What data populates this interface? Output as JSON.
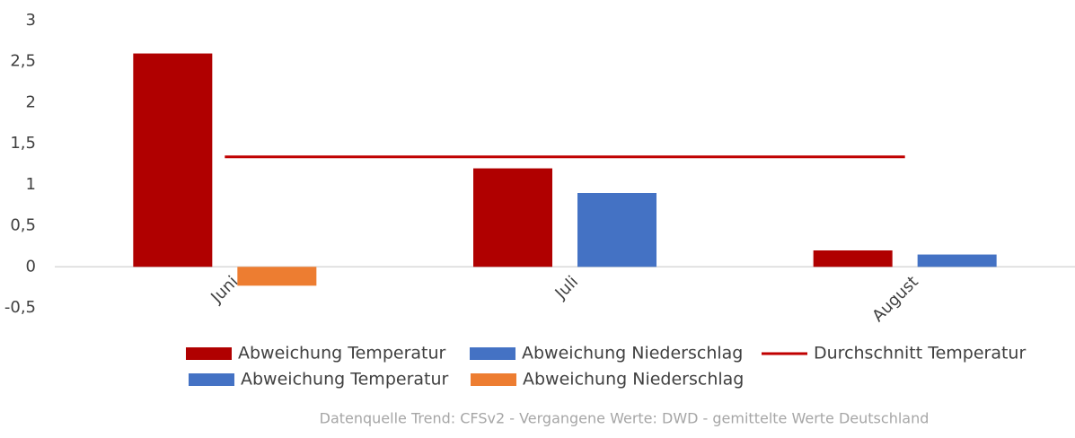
{
  "chart_data": {
    "type": "bar",
    "categories": [
      "Juni",
      "Juli",
      "August"
    ],
    "series": [
      {
        "name": "Abweichung Temperatur",
        "color": "#b00000",
        "values": [
          2.6,
          1.2,
          0.2
        ]
      },
      {
        "name": "Abweichung Niederschlag",
        "color": "#4472c4",
        "values": [
          null,
          0.9,
          0.15
        ]
      },
      {
        "name": "Durchschnitt Temperatur",
        "color": "#c00000",
        "type": "line",
        "values": [
          1.34,
          1.34,
          1.34
        ]
      },
      {
        "name": "Abweichung Temperatur",
        "color": "#4472c4",
        "values": [
          null,
          null,
          null
        ]
      },
      {
        "name": "Abweichung Niederschlag",
        "color": "#ed7d31",
        "values": [
          -0.23,
          null,
          null
        ]
      }
    ],
    "ylim": [
      -0.5,
      3
    ],
    "yticks": [
      {
        "value": -0.5,
        "label": "-0,5"
      },
      0,
      {
        "value": 0.5,
        "label": "0,5"
      },
      1,
      {
        "value": 1.5,
        "label": "1,5"
      },
      2,
      {
        "value": 2.5,
        "label": "2,5"
      },
      3
    ],
    "grid": false,
    "legend": "bottom",
    "source": "Datenquelle Trend: CFSv2 - Vergangene Werte: DWD - gemittelte Werte Deutschland"
  }
}
